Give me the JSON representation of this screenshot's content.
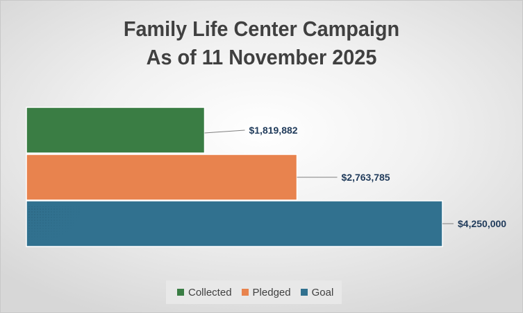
{
  "chart_data": {
    "type": "bar",
    "orientation": "horizontal",
    "title_line1": "Family Life Center Campaign",
    "title_line2": "As of 11 November 2025",
    "categories": [
      "Collected",
      "Pledged",
      "Goal"
    ],
    "values": [
      1819882,
      2763785,
      4250000
    ],
    "data_labels": [
      "$1,819,882",
      "$2,763,785",
      "$4,250,000"
    ],
    "colors": [
      "#3a7d44",
      "#e8834e",
      "#31718f"
    ],
    "xlim": [
      0,
      4250000
    ],
    "grid": false,
    "legend_position": "bottom",
    "legend": [
      "Collected",
      "Pledged",
      "Goal"
    ]
  }
}
